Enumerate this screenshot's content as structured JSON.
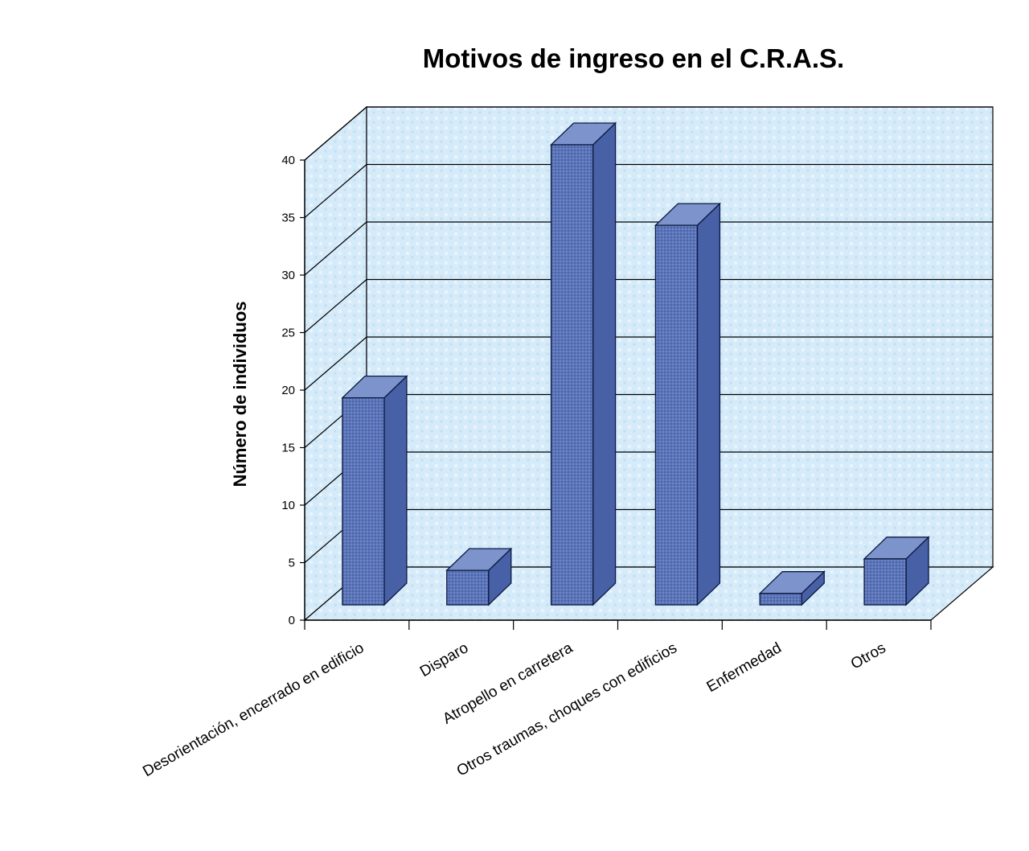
{
  "chart_data": {
    "type": "bar",
    "title": "Motivos de ingreso en el C.R.A.S.",
    "xlabel": "",
    "ylabel": "Número de individuos",
    "categories": [
      "Desorientación, encerrado en edificio",
      "Disparo",
      "Atropello en carretera",
      "Otros traumas, choques con edificios",
      "Enfermedad",
      "Otros"
    ],
    "values": [
      18,
      3,
      40,
      33,
      1,
      4
    ],
    "ylim": [
      0,
      40
    ],
    "yticks": [
      0,
      5,
      10,
      15,
      20,
      25,
      30,
      35,
      40
    ],
    "grid": true,
    "legend": "none",
    "style": "3d-column"
  },
  "colors": {
    "bar_front": "#5b74b8",
    "bar_side": "#4760a6",
    "bar_top": "#7c93cc",
    "bar_outline": "#0d1a40",
    "wall": "#cfe6f7",
    "gridline": "#000000"
  }
}
